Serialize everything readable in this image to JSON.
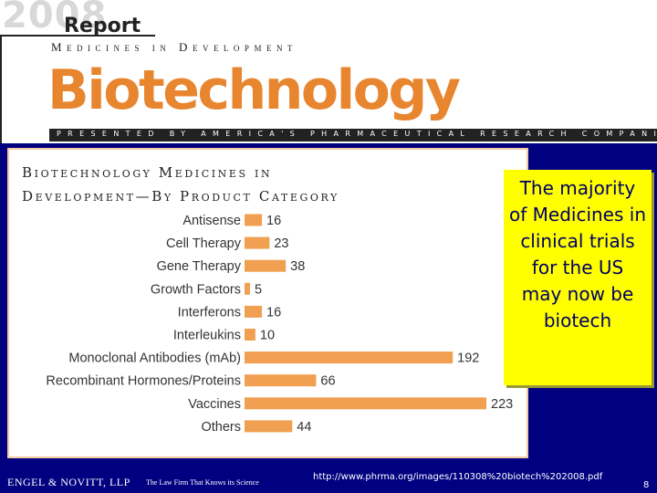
{
  "header": {
    "year": "2008",
    "report_label": "Report",
    "subtitle": "Medicines in Development",
    "title": "Biotechnology",
    "presented_by": "PRESENTED BY AMERICA'S PHARMACEUTICAL RESEARCH COMPANIES"
  },
  "colors": {
    "accent_orange": "#e8852f",
    "bar_orange": "#f0a050",
    "slide_navy": "#000080",
    "callout_yellow": "#ffff00"
  },
  "chart_data": {
    "type": "bar",
    "orientation": "horizontal",
    "title_line1": "Biotechnology Medicines in",
    "title_line2": "Development—By Product Category",
    "categories": [
      "Antisense",
      "Cell Therapy",
      "Gene Therapy",
      "Growth Factors",
      "Interferons",
      "Interleukins",
      "Monoclonal Antibodies (mAb)",
      "Recombinant Hormones/Proteins",
      "Vaccines",
      "Others"
    ],
    "values": [
      16,
      23,
      38,
      5,
      16,
      10,
      192,
      66,
      223,
      44
    ],
    "xlim": [
      0,
      223
    ],
    "data_labels": true,
    "grid": false,
    "legend": "none"
  },
  "callout": {
    "text": "The majority of Medicines in clinical trials for the US may now be biotech"
  },
  "footer": {
    "firm_name": "ENGEL & NOVITT, LLP",
    "firm_tagline": "The Law Firm That Knows its Science",
    "source_url": "http://www.phrma.org/images/110308%20biotech%202008.pdf",
    "page_number": "8"
  }
}
